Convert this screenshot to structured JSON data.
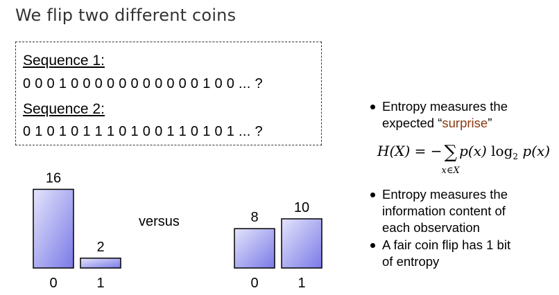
{
  "title": "We flip two different coins",
  "sequences": [
    {
      "label": "Sequence 1:",
      "value": "0 0 0 1 0 0 0 0 0 0 0 0 0 0 0 1 0 0 ... ?"
    },
    {
      "label": "Sequence 2:",
      "value": "0 1 0 1 0 1 1 1 0 1 0 0 1 1 0 1 0 1 ... ?"
    }
  ],
  "versus_label": "versus",
  "chart_data": [
    {
      "type": "bar",
      "categories": [
        "0",
        "1"
      ],
      "values": [
        16,
        2
      ],
      "title": "",
      "xlabel": "",
      "ylabel": "",
      "bar_color_top": "#e4e4fb",
      "bar_color_bottom": "#7a7ae8"
    },
    {
      "type": "bar",
      "categories": [
        "0",
        "1"
      ],
      "values": [
        8,
        10
      ],
      "title": "",
      "xlabel": "",
      "ylabel": "",
      "bar_color_top": "#e4e4fb",
      "bar_color_bottom": "#7a7ae8"
    }
  ],
  "bullets": {
    "b1_line1": "Entropy measures the",
    "b1_line2_pre": "expected “",
    "b1_highlight": "surprise",
    "b1_line2_post": "”",
    "b2_line1": "Entropy measures the",
    "b2_line2": "information content of",
    "b2_line3": "each observation",
    "b3_line1": "A fair coin flip has 1 bit",
    "b3_line2": "of entropy"
  },
  "formula": {
    "lhs": "H(X)",
    "equals_minus": " = −",
    "sum_symbol": "∑",
    "sum_sub": "x∈X",
    "term1": "p(x)",
    "log": " log",
    "log_base": "2",
    "term2": " p(x)"
  },
  "colors": {
    "title": "#333333",
    "highlight": "#8b3a10",
    "bar_fill_light": "#e4e4fb",
    "bar_fill_dark": "#7a7ae8"
  }
}
